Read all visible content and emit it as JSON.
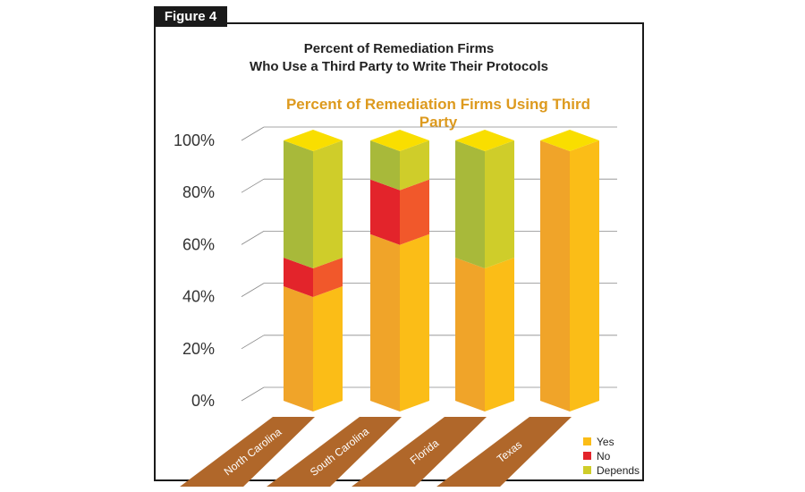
{
  "figure_label": "Figure 4",
  "chart_data": {
    "type": "bar",
    "stacked": true,
    "title": "Percent of Remediation Firms Who Use a Third Party to Write Their Protocols",
    "title_lines": [
      "Percent of Remediation Firms",
      "Who Use a Third Party to Write Their Protocols"
    ],
    "subtitle": "Percent of Remediation Firms Using Third Party",
    "categories": [
      "North Carolina",
      "South Carolina",
      "Florida",
      "Texas"
    ],
    "series": [
      {
        "name": "Yes",
        "values": [
          44,
          64,
          55,
          100
        ]
      },
      {
        "name": "No",
        "values": [
          11,
          21,
          0,
          0
        ]
      },
      {
        "name": "Depends",
        "values": [
          45,
          15,
          45,
          0
        ]
      }
    ],
    "y_ticks": [
      "0%",
      "20%",
      "40%",
      "60%",
      "80%",
      "100%"
    ],
    "ylim": [
      0,
      100
    ],
    "legend_position": "bottom-right",
    "colors": {
      "yes_front": "#f0a429",
      "yes_side": "#fbbd17",
      "no_front": "#e3242b",
      "no_side": "#f1582b",
      "depends_front": "#a8b93a",
      "depends_side": "#cfcd2a",
      "top": "#f9de00",
      "floor": "#b0672a",
      "subtitle": "#dd9a1e"
    }
  }
}
